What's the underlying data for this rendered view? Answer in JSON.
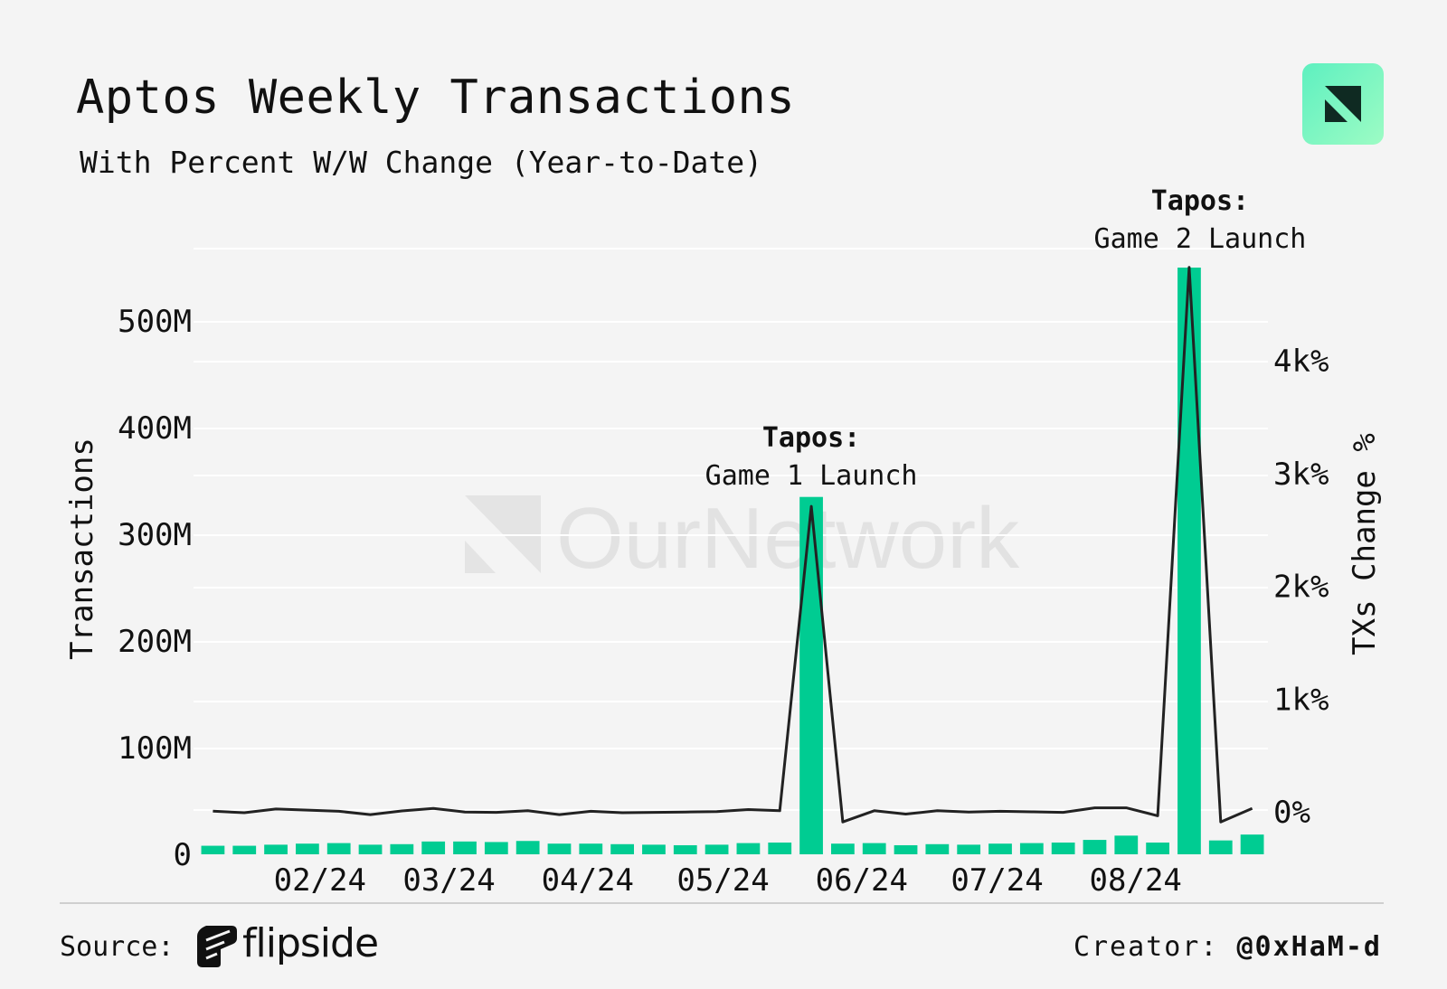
{
  "header": {
    "title": "Aptos Weekly Transactions",
    "subtitle": "With Percent W/W Change (Year-to-Date)"
  },
  "watermark": "OurNetwork",
  "footer": {
    "source_label": "Source:",
    "source_name": "flipside",
    "creator_label": "Creator:",
    "creator_handle": "@0xHaM-d"
  },
  "colors": {
    "bar": "#00cc92",
    "line": "#222222",
    "grid": "#ffffff",
    "background": "#f4f4f4",
    "watermark": "#e2e2e2"
  },
  "chart_data": {
    "type": "bar",
    "title": "Aptos Weekly Transactions",
    "subtitle": "With Percent W/W Change (Year-to-Date)",
    "ylabel": "Transactions",
    "y2label": "TXs Change %",
    "ylim": [
      0,
      550000000
    ],
    "y2lim": [
      -370,
      4930
    ],
    "y_ticks": [
      0,
      100000000,
      200000000,
      300000000,
      400000000,
      500000000
    ],
    "y_tick_labels": [
      "0",
      "100M",
      "200M",
      "300M",
      "400M",
      "500M"
    ],
    "y2_ticks": [
      0,
      1000,
      2000,
      3000,
      4000
    ],
    "y2_tick_labels": [
      "0%",
      "1k%",
      "2k%",
      "3k%",
      "4k%"
    ],
    "x_tick_labels": [
      "02/24",
      "03/24",
      "04/24",
      "05/24",
      "06/24",
      "07/24",
      "08/24"
    ],
    "x_tick_week_index": [
      3.9,
      8.0,
      12.4,
      16.7,
      21.1,
      25.4,
      29.8
    ],
    "grid": true,
    "series": [
      {
        "name": "Transactions",
        "type": "bar",
        "values": [
          8000000,
          8000000,
          9000000,
          10000000,
          10500000,
          9000000,
          9500000,
          12000000,
          12000000,
          11500000,
          12500000,
          10000000,
          10000000,
          9500000,
          9000000,
          8500000,
          9000000,
          10500000,
          11000000,
          335000000,
          10000000,
          10500000,
          8500000,
          9500000,
          9000000,
          10000000,
          10500000,
          11000000,
          13500000,
          17500000,
          11000000,
          550000000,
          13000000,
          18500000
        ]
      },
      {
        "name": "TXs Change %",
        "type": "line",
        "axis": "right",
        "values": [
          6,
          -8,
          25,
          15,
          5,
          -25,
          8,
          30,
          -2,
          -5,
          10,
          -25,
          5,
          -8,
          -5,
          -2,
          2,
          20,
          10,
          2710,
          -90,
          10,
          -20,
          10,
          -2,
          5,
          0,
          -5,
          35,
          35,
          -35,
          4830,
          -90,
          30
        ]
      }
    ],
    "annotations": [
      {
        "label": "Tapos:",
        "text": "Game 1 Launch",
        "week_index": 19
      },
      {
        "label": "Tapos:",
        "text": "Game 2 Launch",
        "week_index": 31
      }
    ]
  }
}
